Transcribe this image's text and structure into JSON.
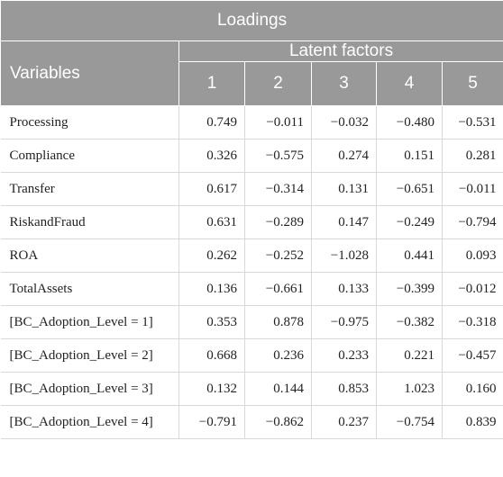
{
  "title": "Loadings",
  "variables_header": "Variables",
  "latent_header": "Latent factors",
  "factor_headers": [
    "1",
    "2",
    "3",
    "4",
    "5"
  ],
  "rows": [
    {
      "label": "Processing",
      "values": [
        "0.749",
        "−0.011",
        "−0.032",
        "−0.480",
        "−0.531"
      ]
    },
    {
      "label": "Compliance",
      "values": [
        "0.326",
        "−0.575",
        "0.274",
        "0.151",
        "0.281"
      ]
    },
    {
      "label": "Transfer",
      "values": [
        "0.617",
        "−0.314",
        "0.131",
        "−0.651",
        "−0.011"
      ]
    },
    {
      "label": "RiskandFraud",
      "values": [
        "0.631",
        "−0.289",
        "0.147",
        "−0.249",
        "−0.794"
      ]
    },
    {
      "label": "ROA",
      "values": [
        "0.262",
        "−0.252",
        "−1.028",
        "0.441",
        "0.093"
      ]
    },
    {
      "label": "TotalAssets",
      "values": [
        "0.136",
        "−0.661",
        "0.133",
        "−0.399",
        "−0.012"
      ]
    },
    {
      "label": "[BC_Adoption_Level = 1]",
      "values": [
        "0.353",
        "0.878",
        "−0.975",
        "−0.382",
        "−0.318"
      ]
    },
    {
      "label": "[BC_Adoption_Level = 2]",
      "values": [
        "0.668",
        "0.236",
        "0.233",
        "0.221",
        "−0.457"
      ]
    },
    {
      "label": "[BC_Adoption_Level = 3]",
      "values": [
        "0.132",
        "0.144",
        "0.853",
        "1.023",
        "0.160"
      ]
    },
    {
      "label": "[BC_Adoption_Level = 4]",
      "values": [
        "−0.791",
        "−0.862",
        "0.237",
        "−0.754",
        "0.839"
      ]
    }
  ]
}
